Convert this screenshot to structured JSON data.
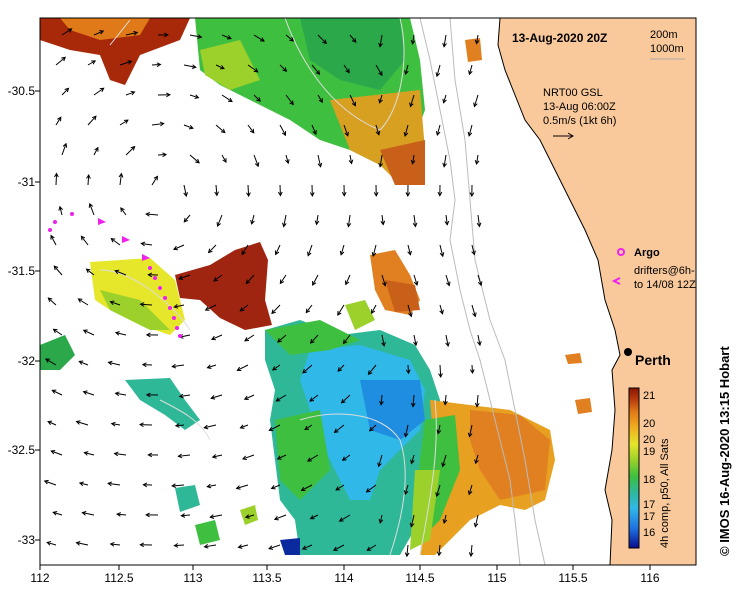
{
  "map": {
    "title": "13-Aug-2020 20Z",
    "depth_legend": [
      "200m",
      "1000m"
    ],
    "current_info": [
      "NRT00 GSL",
      "13-Aug 06:00Z",
      "0.5m/s (1kt 6h)"
    ],
    "argo_label": "Argo",
    "drifters_label": [
      "drifters@6h-",
      "to 14/08 12Z"
    ],
    "city_label": "Perth",
    "colorbar_title": "4h comp, p50, All Sats",
    "colorbar_ticks": [
      "21",
      "20",
      "20",
      "19",
      "18",
      "17",
      "17",
      "16"
    ],
    "credit": "© IMOS 16-Aug-2020 13:15 Hobart",
    "lon_ticks": [
      "112",
      "112.5",
      "113",
      "113.5",
      "114",
      "114.5",
      "115",
      "115.5",
      "116"
    ],
    "lat_ticks": [
      "-30.5",
      "-31",
      "-31.5",
      "-32",
      "-32.5",
      "-33"
    ],
    "colors": {
      "land": "#f9c99b",
      "sst_scale": [
        "#0b0b8e",
        "#1f6fe0",
        "#30b8e8",
        "#2fb897",
        "#3fbf3f",
        "#9bd12a",
        "#e6e62a",
        "#f0b020",
        "#e07a18",
        "#b83a10",
        "#8a1500"
      ]
    }
  }
}
